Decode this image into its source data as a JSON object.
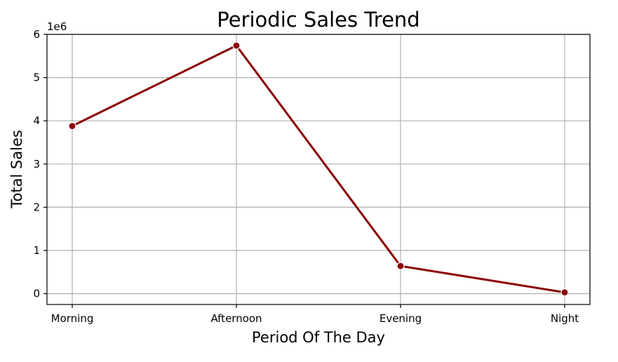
{
  "chart_data": {
    "type": "line",
    "title": "Periodic Sales Trend",
    "xlabel": "Period Of The Day",
    "ylabel": "Total Sales",
    "y_scale_label": "1e6",
    "y_scale": 1000000,
    "categories": [
      "Morning",
      "Afternoon",
      "Evening",
      "Night"
    ],
    "series": [
      {
        "values": [
          3880000,
          5740000,
          640000,
          30000
        ],
        "color": "#8b0000",
        "marker": "circle"
      }
    ],
    "ylim": [
      -250000,
      6000000
    ],
    "yticks": [
      0,
      1000000,
      2000000,
      3000000,
      4000000,
      5000000,
      6000000
    ],
    "ytick_labels": [
      "0",
      "1",
      "2",
      "3",
      "4",
      "5",
      "6"
    ],
    "grid": true,
    "legend": "none"
  }
}
